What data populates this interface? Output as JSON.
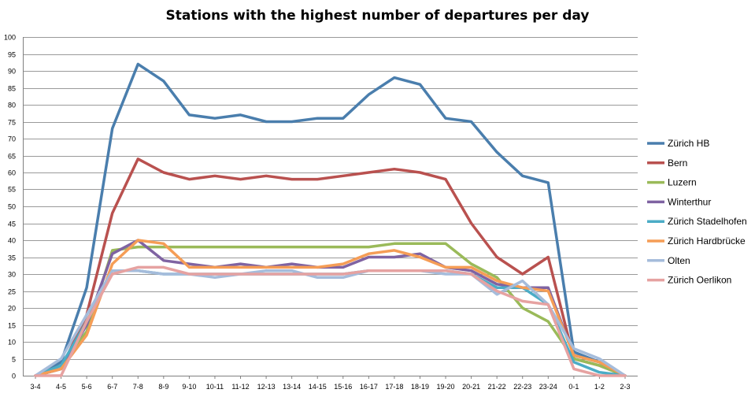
{
  "chart_data": {
    "type": "line",
    "title": "Stations with the highest number of departures per day",
    "xlabel": "",
    "ylabel": "",
    "ylim": [
      0,
      100
    ],
    "y_ticks": [
      0,
      5,
      10,
      15,
      20,
      25,
      30,
      35,
      40,
      45,
      50,
      55,
      60,
      65,
      70,
      75,
      80,
      85,
      90,
      95,
      100
    ],
    "grid": true,
    "legend_position": "right",
    "categories": [
      "3-4",
      "4-5",
      "5-6",
      "6-7",
      "7-8",
      "8-9",
      "9-10",
      "10-11",
      "11-12",
      "12-13",
      "13-14",
      "14-15",
      "15-16",
      "16-17",
      "17-18",
      "18-19",
      "19-20",
      "20-21",
      "21-22",
      "22-23",
      "23-24",
      "0-1",
      "1-2",
      "2-3"
    ],
    "series": [
      {
        "name": "Zürich HB",
        "color": "#4a7ead",
        "values": [
          0,
          4,
          26,
          73,
          92,
          87,
          77,
          76,
          77,
          75,
          75,
          76,
          76,
          83,
          88,
          86,
          76,
          75,
          66,
          59,
          57,
          7,
          4,
          0
        ]
      },
      {
        "name": "Bern",
        "color": "#b9514f",
        "values": [
          0,
          2,
          18,
          48,
          64,
          60,
          58,
          59,
          58,
          59,
          58,
          58,
          59,
          60,
          61,
          60,
          58,
          45,
          35,
          30,
          35,
          5,
          3,
          0
        ]
      },
      {
        "name": "Luzern",
        "color": "#9aba59",
        "values": [
          0,
          3,
          13,
          37,
          38,
          38,
          38,
          38,
          38,
          38,
          38,
          38,
          38,
          38,
          39,
          39,
          39,
          33,
          29,
          20,
          16,
          5,
          3,
          0
        ]
      },
      {
        "name": "Winterthur",
        "color": "#7f63a2",
        "values": [
          0,
          2,
          15,
          36,
          40,
          34,
          33,
          32,
          33,
          32,
          33,
          32,
          32,
          35,
          35,
          36,
          32,
          31,
          27,
          26,
          26,
          6,
          4,
          0
        ]
      },
      {
        "name": "Zürich Stadelhofen",
        "color": "#4bacc6",
        "values": [
          0,
          3,
          16,
          31,
          31,
          30,
          30,
          30,
          30,
          30,
          30,
          30,
          30,
          31,
          31,
          31,
          31,
          30,
          26,
          26,
          21,
          4,
          1,
          0
        ]
      },
      {
        "name": "Zürich Hardbrücke",
        "color": "#f59d56",
        "values": [
          0,
          2,
          12,
          33,
          40,
          39,
          32,
          32,
          32,
          32,
          32,
          32,
          33,
          36,
          37,
          35,
          32,
          32,
          28,
          26,
          25,
          6,
          4,
          0
        ]
      },
      {
        "name": "Olten",
        "color": "#a5bcdb",
        "values": [
          0,
          5,
          18,
          31,
          31,
          30,
          30,
          29,
          30,
          31,
          31,
          29,
          29,
          31,
          31,
          31,
          30,
          30,
          24,
          28,
          21,
          8,
          5,
          0
        ]
      },
      {
        "name": "Zürich Oerlikon",
        "color": "#e6a2a1",
        "values": [
          0,
          0,
          16,
          30,
          32,
          32,
          30,
          30,
          30,
          30,
          30,
          30,
          30,
          31,
          31,
          31,
          31,
          30,
          25,
          22,
          21,
          2,
          0,
          0
        ]
      }
    ]
  }
}
